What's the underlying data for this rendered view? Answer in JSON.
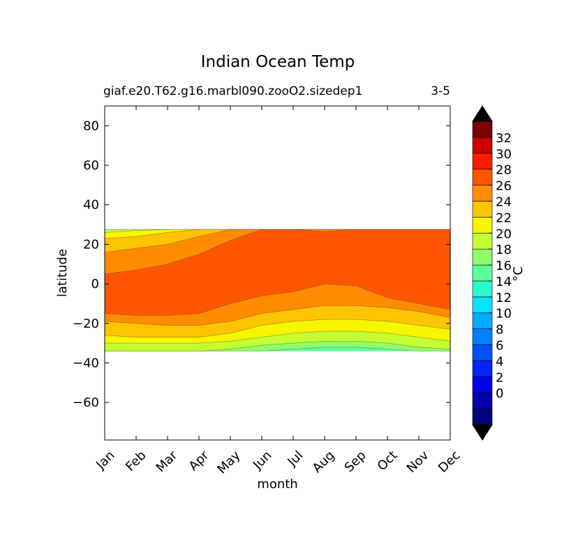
{
  "chart_data": {
    "type": "heatmap",
    "subtype": "filled-contour",
    "title": "Indian Ocean Temp",
    "subtitle_left": "giaf.e20.T62.g16.marbl090.zooO2.sizedep1",
    "subtitle_right": "3-5",
    "xlabel": "month",
    "ylabel": "latitude",
    "x_categories": [
      "Jan",
      "Feb",
      "Mar",
      "Apr",
      "May",
      "Jun",
      "Jul",
      "Aug",
      "Sep",
      "Oct",
      "Nov",
      "Dec"
    ],
    "y_ticks": [
      80,
      60,
      40,
      20,
      0,
      -20,
      -40,
      -60
    ],
    "ylim": [
      -79,
      90
    ],
    "data_lat_range": [
      -34,
      27.5
    ],
    "colorbar": {
      "label": "°C",
      "tick_labels": [
        0,
        2,
        4,
        6,
        8,
        10,
        12,
        14,
        16,
        18,
        20,
        22,
        24,
        26,
        28,
        30,
        32
      ],
      "levels": [
        -2,
        0,
        2,
        4,
        6,
        8,
        10,
        12,
        14,
        16,
        18,
        20,
        22,
        24,
        26,
        28,
        30,
        32,
        34
      ],
      "colors": [
        "#000080",
        "#0000b0",
        "#0000ee",
        "#0024ff",
        "#0050ff",
        "#0080ff",
        "#00acff",
        "#00e4f8",
        "#29ffce",
        "#5bff9b",
        "#8cff6a",
        "#c4ff33",
        "#f8f500",
        "#ffc400",
        "#ff8c00",
        "#ff5500",
        "#ff1a00",
        "#cc0000",
        "#800000"
      ],
      "extend": "both",
      "under_color": "#000000",
      "over_color": "#000000"
    },
    "contour_boundaries_lat": [
      {
        "level": 28,
        "north": [
          5,
          7,
          10,
          15,
          22,
          27.5,
          27.5,
          26.5,
          27.5,
          27.5,
          27.5,
          27.5
        ],
        "south": [
          -15,
          -16,
          -16,
          -15,
          -10,
          -6,
          -4,
          0,
          -1,
          -7,
          -10,
          -13
        ]
      },
      {
        "level": 26,
        "north": [
          16,
          18,
          20,
          24,
          27.5,
          27.5,
          27.5,
          27.5,
          27.5,
          27.5,
          27.5,
          27.5
        ],
        "south": [
          -19,
          -20,
          -21,
          -21,
          -19,
          -15,
          -13,
          -11,
          -11,
          -12,
          -14,
          -17
        ]
      },
      {
        "level": 24,
        "north": [
          23,
          24,
          26,
          27.5,
          27.5,
          27.5,
          27.5,
          27.5,
          27.5,
          27.5,
          27.5,
          27.5
        ],
        "south": [
          -26,
          -27,
          -27,
          -27,
          -25,
          -21,
          -19,
          -18,
          -18,
          -19,
          -21,
          -23
        ]
      },
      {
        "level": 22,
        "north": [
          26,
          27,
          27.5,
          27.5,
          27.5,
          27.5,
          27.5,
          27.5,
          27.5,
          27.5,
          27.5,
          27.5
        ],
        "south": [
          -30,
          -30,
          -30,
          -30,
          -29,
          -27,
          -25,
          -24,
          -24,
          -25,
          -27,
          -29
        ]
      },
      {
        "level": 20,
        "north": [
          27.5,
          27.5,
          27.5,
          27.5,
          27.5,
          27.5,
          27.5,
          27.5,
          27.5,
          27.5,
          27.5,
          27.5
        ],
        "south": [
          -34,
          -34,
          -34,
          -34,
          -33,
          -31,
          -30,
          -29,
          -29,
          -30,
          -32,
          -33
        ]
      },
      {
        "level": 18,
        "north": [
          27.5,
          27.5,
          27.5,
          27.5,
          27.5,
          27.5,
          27.5,
          27.5,
          27.5,
          27.5,
          27.5,
          27.5
        ],
        "south": [
          -34,
          -34,
          -34,
          -34,
          -34,
          -34,
          -33,
          -32,
          -32,
          -33,
          -34,
          -34
        ]
      }
    ]
  }
}
